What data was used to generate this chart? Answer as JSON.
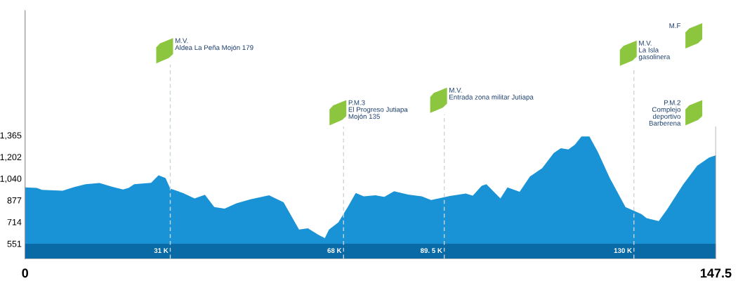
{
  "chart_data": {
    "type": "area",
    "x": [
      0,
      2.5,
      3.6,
      8.0,
      10.5,
      12.9,
      15.9,
      18.4,
      20.9,
      22.1,
      23.3,
      26.9,
      28.5,
      30.0,
      31.0,
      33.7,
      36.2,
      38.4,
      40.4,
      42.6,
      45.1,
      48.1,
      52.1,
      55.2,
      58.5,
      60.4,
      62.5,
      64.0,
      64.9,
      66.9,
      68.9,
      70.6,
      72.3,
      74.8,
      76.7,
      78.8,
      81.8,
      84.7,
      86.7,
      90.7,
      94.1,
      95.6,
      97.5,
      98.5,
      101.5,
      103.0,
      105.6,
      107.8,
      110.4,
      112.9,
      114.4,
      116.0,
      117.4,
      118.8,
      120.5,
      122.3,
      124.8,
      128.2,
      131.6,
      132.7,
      135.3,
      137.1,
      140.5,
      143.5,
      146.0,
      147.5
    ],
    "series": [
      {
        "color": "#1a93d6",
        "values": [
          973,
          969,
          955,
          948,
          976,
          997,
          1006,
          980,
          958,
          969,
          997,
          1008,
          1064,
          1043,
          964,
          932,
          891,
          918,
          826,
          814,
          853,
          884,
          914,
          862,
          658,
          667,
          620,
          593,
          658,
          711,
          826,
          932,
          906,
          914,
          902,
          944,
          920,
          906,
          879,
          909,
          927,
          912,
          985,
          997,
          891,
          973,
          941,
          1055,
          1117,
          1232,
          1267,
          1258,
          1293,
          1355,
          1355,
          1240,
          1047,
          826,
          773,
          743,
          720,
          809,
          994,
          1135,
          1196,
          1214
        ]
      }
    ],
    "xlim": [
      0,
      147.5
    ],
    "xticks": [
      0,
      147.5
    ],
    "ylim": [
      440,
      2300
    ],
    "yticks": [
      551,
      714,
      877,
      {
        "value": 1040,
        "label": "1,040"
      },
      {
        "value": 1202,
        "label": "1,202"
      },
      {
        "value": 1365,
        "label": "1,365"
      }
    ],
    "bands": [
      {
        "axis": "y",
        "from": 440,
        "to": 551,
        "color": "#0a6aa6"
      }
    ],
    "ref_lines": [
      {
        "axis": "x",
        "value": 31,
        "label": "31 K",
        "color": "#c8d4de",
        "line_style": "dashed"
      },
      {
        "axis": "x",
        "value": 68,
        "label": "68 K",
        "color": "#c8d4de",
        "line_style": "dashed"
      },
      {
        "axis": "x",
        "value": 89.5,
        "label": "89. 5 K",
        "color": "#c8d4de",
        "line_style": "dashed"
      },
      {
        "axis": "x",
        "value": 130,
        "label": "130 K",
        "color": "#c8d4de",
        "line_style": "dashed"
      },
      {
        "axis": "x",
        "value": 147.5,
        "color": "#999999",
        "line_style": "solid"
      }
    ],
    "annotations": [
      "M.V.\nAldea La Peña Mojón 179",
      "P.M.3\nEl Progreso Jutiapa\nMojón 135",
      "M.V.\nEntrada zona militar Jutiapa",
      "M.V.\nLa Isla\ngasolinera",
      "M.F",
      "P.M.2\nComplejo\ndeportivo\nBarberena"
    ],
    "grid": false
  }
}
